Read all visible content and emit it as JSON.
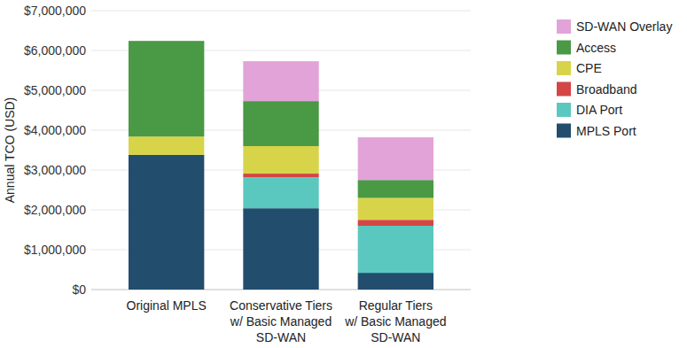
{
  "chart_data": {
    "type": "bar",
    "stacked": true,
    "grid": true,
    "legend": "right",
    "y_label": "Annual TCO (USD)",
    "categories": [
      "Original MPLS",
      "Conservative Tiers\nw/ Basic Managed\nSD-WAN",
      "Regular Tiers\nw/ Basic Managed\nSD-WAN"
    ],
    "series": [
      {
        "name": "MPLS Port",
        "color": "#224d6d",
        "values": [
          3380000,
          2040000,
          420000
        ]
      },
      {
        "name": "DIA Port",
        "color": "#5bc8c0",
        "values": [
          0,
          780000,
          1180000
        ]
      },
      {
        "name": "Broadband",
        "color": "#d54545",
        "values": [
          0,
          90000,
          150000
        ]
      },
      {
        "name": "CPE",
        "color": "#d8d44a",
        "values": [
          460000,
          690000,
          550000
        ]
      },
      {
        "name": "Access",
        "color": "#4a9945",
        "values": [
          2400000,
          1130000,
          450000
        ]
      },
      {
        "name": "SD-WAN Overlay",
        "color": "#e2a3d8",
        "values": [
          0,
          1000000,
          1070000
        ]
      }
    ],
    "ylim": [
      0,
      7000000
    ],
    "yticks": [
      {
        "value": 0,
        "label": "$0"
      },
      {
        "value": 1000000,
        "label": "$1,000,000"
      },
      {
        "value": 2000000,
        "label": "$2,000,000"
      },
      {
        "value": 3000000,
        "label": "$3,000,000"
      },
      {
        "value": 4000000,
        "label": "$4,000,000"
      },
      {
        "value": 5000000,
        "label": "$5,000,000"
      },
      {
        "value": 6000000,
        "label": "$6,000,000"
      },
      {
        "value": 7000000,
        "label": "$7,000,000"
      }
    ]
  }
}
